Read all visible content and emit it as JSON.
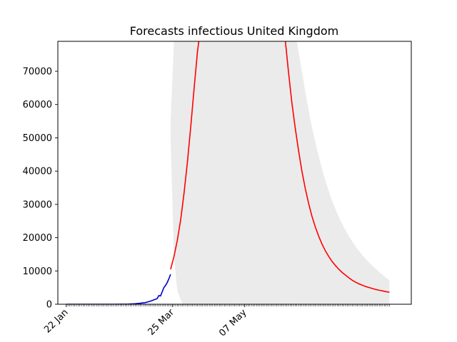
{
  "chart_data": {
    "type": "line",
    "title": "Forecasts infectious United Kingdom",
    "xlabel": "",
    "ylabel": "",
    "ylim": [
      0,
      79000
    ],
    "xlim_days_from_22_jan": [
      -5,
      205
    ],
    "y_ticks": [
      0,
      10000,
      20000,
      30000,
      40000,
      50000,
      60000,
      70000
    ],
    "x_tick_labels": [
      {
        "date": "2020-01-22",
        "label": "22 Jan"
      },
      {
        "date": "2020-03-25",
        "label": "25 Mar"
      },
      {
        "date": "2020-05-07",
        "label": "07 May"
      }
    ],
    "minor_x_ticks_daily": true,
    "grid": false,
    "legend": "none",
    "colors": {
      "observed": "#0000cc",
      "forecast": "#ff0000",
      "band": "#ebebeb",
      "axes": "#000000"
    },
    "series": [
      {
        "kind": "observed",
        "x": [
          "2020-01-22",
          "2020-02-10",
          "2020-02-20",
          "2020-02-28",
          "2020-03-03",
          "2020-03-06",
          "2020-03-09",
          "2020-03-12",
          "2020-03-14",
          "2020-03-16",
          "2020-03-17",
          "2020-03-18",
          "2020-03-19",
          "2020-03-20",
          "2020-03-21",
          "2020-03-22",
          "2020-03-23",
          "2020-03-24"
        ],
        "y": [
          0,
          0,
          0,
          50,
          150,
          300,
          500,
          900,
          1300,
          1700,
          2600,
          2500,
          3700,
          5000,
          5700,
          6500,
          7700,
          9000
        ]
      },
      {
        "kind": "forecast",
        "x": [
          "2020-03-24",
          "2020-03-26",
          "2020-03-28",
          "2020-03-30",
          "2020-04-01",
          "2020-04-03",
          "2020-04-05",
          "2020-04-07",
          "2020-04-09",
          "2020-04-10",
          "2020-05-31",
          "2020-06-02",
          "2020-06-04",
          "2020-06-06",
          "2020-06-08",
          "2020-06-10",
          "2020-06-12",
          "2020-06-14",
          "2020-06-16",
          "2020-06-18",
          "2020-06-20",
          "2020-06-22",
          "2020-06-24",
          "2020-06-26",
          "2020-06-28",
          "2020-06-30",
          "2020-07-02",
          "2020-07-04",
          "2020-07-06",
          "2020-07-08",
          "2020-07-10",
          "2020-07-12",
          "2020-07-14",
          "2020-07-16",
          "2020-07-18",
          "2020-07-20",
          "2020-07-22",
          "2020-07-24",
          "2020-07-26",
          "2020-07-28",
          "2020-07-30",
          "2020-08-01"
        ],
        "y": [
          10500,
          14300,
          19300,
          25500,
          33500,
          42800,
          53500,
          65000,
          76000,
          80000,
          80000,
          70000,
          60800,
          53000,
          46200,
          40000,
          34800,
          30300,
          26400,
          23200,
          20400,
          18000,
          16000,
          14300,
          12800,
          11600,
          10500,
          9500,
          8700,
          7900,
          7200,
          6600,
          6100,
          5700,
          5300,
          5000,
          4700,
          4400,
          4200,
          4000,
          3800,
          3600
        ]
      }
    ],
    "band": {
      "lower": {
        "x": [
          "2020-03-24",
          "2020-03-26",
          "2020-03-28",
          "2020-03-31",
          "2020-04-04",
          "2020-07-28",
          "2020-08-01"
        ],
        "y": [
          50000,
          14000,
          4000,
          0,
          0,
          0,
          0
        ]
      },
      "upper": {
        "x": [
          "2020-03-24",
          "2020-03-26",
          "2020-03-28",
          "2020-03-30",
          "2020-06-07",
          "2020-06-10",
          "2020-06-13",
          "2020-06-16",
          "2020-06-19",
          "2020-06-22",
          "2020-06-25",
          "2020-06-28",
          "2020-07-01",
          "2020-07-04",
          "2020-07-07",
          "2020-07-10",
          "2020-07-13",
          "2020-07-16",
          "2020-07-19",
          "2020-07-22",
          "2020-07-25",
          "2020-07-28",
          "2020-08-01"
        ],
        "y": [
          55000,
          79000,
          79000,
          79000,
          79000,
          70000,
          61000,
          53000,
          46500,
          40500,
          35500,
          31000,
          27300,
          24000,
          21200,
          18800,
          16600,
          14700,
          13000,
          11500,
          10100,
          8800,
          7200
        ]
      }
    }
  }
}
